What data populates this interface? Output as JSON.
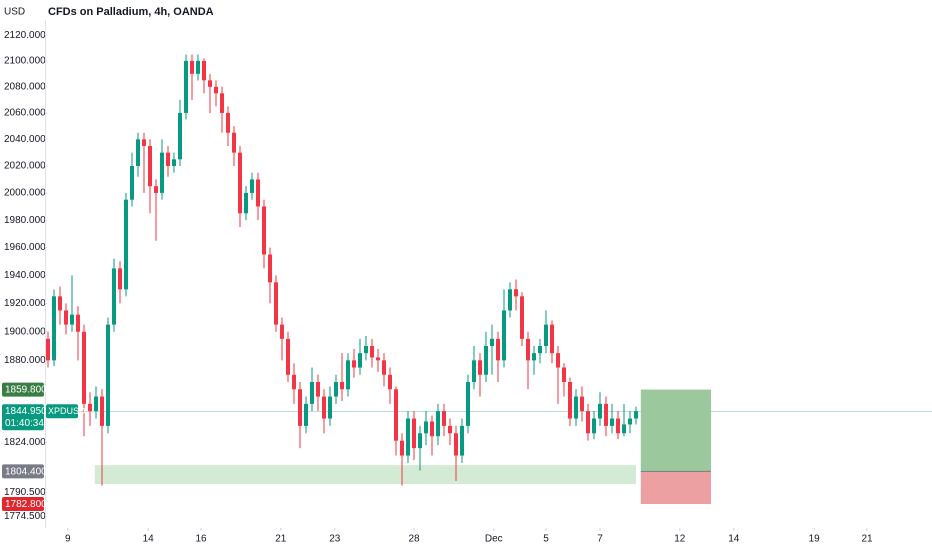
{
  "chart_data": {
    "type": "candlestick",
    "title": "CFDs on Palladium, 4h, OANDA",
    "currency": "USD",
    "log_scale": true,
    "up_color": "#089981",
    "down_color": "#f23645",
    "ylim": [
      1769,
      2132
    ],
    "yticks": [
      {
        "value": 2120,
        "label": "2120.000"
      },
      {
        "value": 2100,
        "label": "2100.000"
      },
      {
        "value": 2080,
        "label": "2080.000"
      },
      {
        "value": 2060,
        "label": "2060.000"
      },
      {
        "value": 2040,
        "label": "2040.000"
      },
      {
        "value": 2020,
        "label": "2020.000"
      },
      {
        "value": 2000,
        "label": "2000.000"
      },
      {
        "value": 1980,
        "label": "1980.000"
      },
      {
        "value": 1960,
        "label": "1960.000"
      },
      {
        "value": 1940,
        "label": "1940.000"
      },
      {
        "value": 1920,
        "label": "1920.000"
      },
      {
        "value": 1900,
        "label": "1900.000"
      },
      {
        "value": 1880,
        "label": "1880.000"
      },
      {
        "value": 1824,
        "label": "1824.000"
      },
      {
        "value": 1790.5,
        "label": "1790.500"
      },
      {
        "value": 1774.5,
        "label": "1774.500"
      }
    ],
    "xlim": [
      -1,
      147
    ],
    "xticks": [
      {
        "value": 3.3,
        "label": "9"
      },
      {
        "value": 16.7,
        "label": "14"
      },
      {
        "value": 25.5,
        "label": "16"
      },
      {
        "value": 38.8,
        "label": "21"
      },
      {
        "value": 47.8,
        "label": "23"
      },
      {
        "value": 61,
        "label": "28"
      },
      {
        "value": 74.3,
        "label": "Dec"
      },
      {
        "value": 83,
        "label": "5"
      },
      {
        "value": 92,
        "label": "7"
      },
      {
        "value": 105.3,
        "label": "12"
      },
      {
        "value": 114.3,
        "label": "14"
      },
      {
        "value": 127.7,
        "label": "19"
      },
      {
        "value": 136.5,
        "label": "21"
      }
    ],
    "open": [
      1895,
      1880,
      1925,
      1915,
      1905,
      1912,
      1900,
      1850,
      1845,
      1855,
      1835,
      1905,
      1945,
      1930,
      1995,
      2020,
      2040,
      2035,
      2005,
      2000,
      2030,
      2020,
      2025,
      2060,
      2100,
      2090,
      2100,
      2085,
      2080,
      2075,
      2060,
      2045,
      2030,
      1985,
      2000,
      2010,
      1990,
      1955,
      1935,
      1905,
      1895,
      1870,
      1860,
      1835,
      1850,
      1865,
      1855,
      1840,
      1855,
      1865,
      1860,
      1880,
      1875,
      1885,
      1890,
      1882,
      1880,
      1870,
      1860,
      1825,
      1815,
      1840,
      1820,
      1830,
      1838,
      1828,
      1845,
      1835,
      1830,
      1815,
      1835,
      1865,
      1880,
      1870,
      1890,
      1895,
      1880,
      1915,
      1930,
      1925,
      1895,
      1880,
      1885,
      1890,
      1905,
      1885,
      1875,
      1865,
      1840,
      1855,
      1845,
      1830,
      1840,
      1850,
      1835,
      1840,
      1830,
      1836,
      1840
    ],
    "high": [
      1900,
      1930,
      1932,
      1920,
      1940,
      1918,
      1905,
      1858,
      1862,
      1860,
      1910,
      1952,
      1950,
      2000,
      2030,
      2045,
      2045,
      2040,
      2010,
      2040,
      2035,
      2030,
      2070,
      2105,
      2105,
      2105,
      2102,
      2090,
      2085,
      2080,
      2065,
      2050,
      2035,
      2005,
      2015,
      2015,
      1995,
      1960,
      1940,
      1910,
      1900,
      1878,
      1865,
      1855,
      1875,
      1870,
      1860,
      1862,
      1870,
      1885,
      1885,
      1888,
      1895,
      1897,
      1895,
      1888,
      1885,
      1875,
      1862,
      1830,
      1845,
      1845,
      1835,
      1845,
      1842,
      1850,
      1850,
      1840,
      1835,
      1840,
      1870,
      1890,
      1885,
      1900,
      1905,
      1900,
      1930,
      1935,
      1937,
      1928,
      1900,
      1890,
      1895,
      1915,
      1908,
      1890,
      1878,
      1868,
      1860,
      1862,
      1850,
      1845,
      1858,
      1855,
      1850,
      1845,
      1850,
      1845,
      1848
    ],
    "low": [
      1875,
      1876,
      1905,
      1898,
      1900,
      1880,
      1828,
      1835,
      1840,
      1795,
      1830,
      1900,
      1920,
      1925,
      1990,
      2012,
      2000,
      1985,
      1965,
      1995,
      2012,
      2015,
      2020,
      2055,
      2070,
      2085,
      2075,
      2060,
      2065,
      2045,
      2035,
      2020,
      1975,
      1980,
      1995,
      1980,
      1945,
      1920,
      1900,
      1880,
      1865,
      1850,
      1820,
      1830,
      1845,
      1845,
      1830,
      1835,
      1850,
      1852,
      1855,
      1868,
      1870,
      1880,
      1875,
      1872,
      1862,
      1850,
      1815,
      1795,
      1810,
      1812,
      1805,
      1822,
      1815,
      1822,
      1828,
      1822,
      1798,
      1810,
      1830,
      1860,
      1855,
      1865,
      1870,
      1865,
      1875,
      1910,
      1915,
      1890,
      1860,
      1870,
      1878,
      1885,
      1878,
      1850,
      1855,
      1835,
      1835,
      1838,
      1825,
      1826,
      1835,
      1828,
      1830,
      1826,
      1828,
      1830,
      1836
    ],
    "close": [
      1880,
      1925,
      1915,
      1905,
      1912,
      1900,
      1850,
      1845,
      1855,
      1835,
      1905,
      1945,
      1930,
      1995,
      2020,
      2040,
      2035,
      2005,
      2000,
      2030,
      2020,
      2025,
      2060,
      2100,
      2090,
      2100,
      2085,
      2080,
      2075,
      2060,
      2045,
      2030,
      1985,
      2000,
      2010,
      1990,
      1955,
      1935,
      1905,
      1895,
      1870,
      1860,
      1835,
      1850,
      1865,
      1855,
      1840,
      1855,
      1865,
      1860,
      1880,
      1875,
      1885,
      1890,
      1882,
      1880,
      1870,
      1860,
      1825,
      1815,
      1840,
      1820,
      1830,
      1838,
      1828,
      1845,
      1835,
      1830,
      1815,
      1835,
      1865,
      1880,
      1870,
      1890,
      1895,
      1880,
      1915,
      1930,
      1925,
      1895,
      1880,
      1885,
      1890,
      1905,
      1885,
      1875,
      1865,
      1840,
      1855,
      1845,
      1830,
      1840,
      1850,
      1835,
      1840,
      1830,
      1836,
      1840,
      1845
    ],
    "zone": {
      "start": 7.8,
      "end": 98,
      "low": 1796,
      "high": 1808.6,
      "color": "#c8e6c9"
    },
    "position": {
      "start": 98.8,
      "end": 110.5,
      "target": 1859.8,
      "entry": 1804.4,
      "stop": 1782.8,
      "profit_color": "#9bc99d",
      "loss_color": "#eda0a1"
    },
    "current": {
      "value": 1844.95,
      "label": "1844.950",
      "symbol": "XPDUSD",
      "countdown": "01:40:34",
      "color": "#089981"
    },
    "markers": [
      {
        "value": 1859.8,
        "label": "1859.800",
        "color": "#3a7d44"
      },
      {
        "value": 1804.4,
        "label": "1804.400",
        "color": "#787b86"
      },
      {
        "value": 1782.8,
        "label": "1782.800",
        "color": "#e0272f"
      }
    ]
  }
}
